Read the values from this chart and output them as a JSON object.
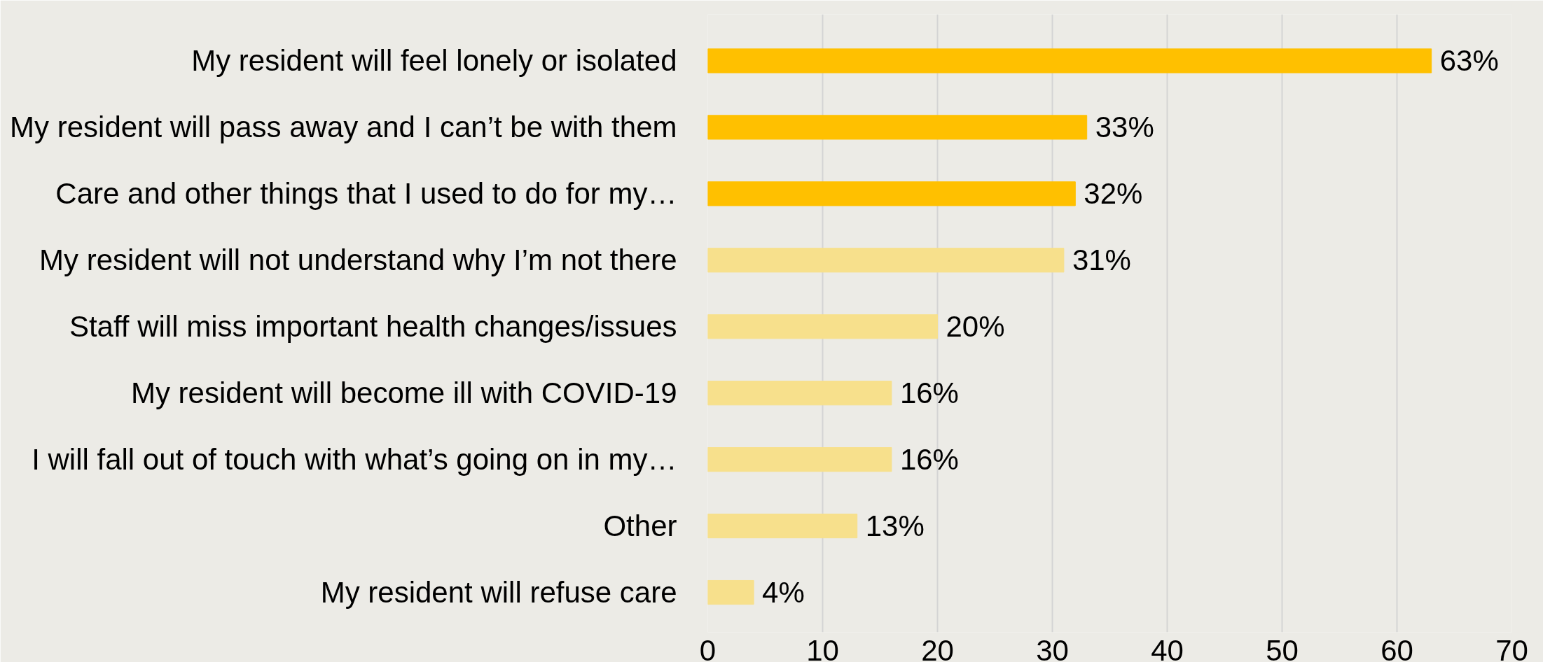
{
  "chart_data": {
    "type": "bar",
    "orientation": "horizontal",
    "categories": [
      "My resident will feel lonely or isolated",
      "My resident will pass away and I can’t be with them",
      "Care and other things that I used to do for my…",
      "My resident will not understand why I’m not there",
      "Staff will miss important health changes/issues",
      "My resident will become ill with COVID-19",
      "I will fall out of touch with what’s going on in my…",
      "Other",
      "My resident will refuse care"
    ],
    "values": [
      63,
      33,
      32,
      31,
      20,
      16,
      16,
      13,
      4
    ],
    "colors": [
      "#ffc000",
      "#ffc000",
      "#ffc000",
      "#f7e08c",
      "#f7e08c",
      "#f7e08c",
      "#f7e08c",
      "#f7e08c",
      "#f7e08c"
    ],
    "value_labels": [
      "63%",
      "33%",
      "32%",
      "31%",
      "20%",
      "16%",
      "16%",
      "13%",
      "4%"
    ],
    "xlim": [
      0,
      70
    ],
    "xticks": [
      0,
      10,
      20,
      30,
      40,
      50,
      60,
      70
    ],
    "grid": "x"
  }
}
